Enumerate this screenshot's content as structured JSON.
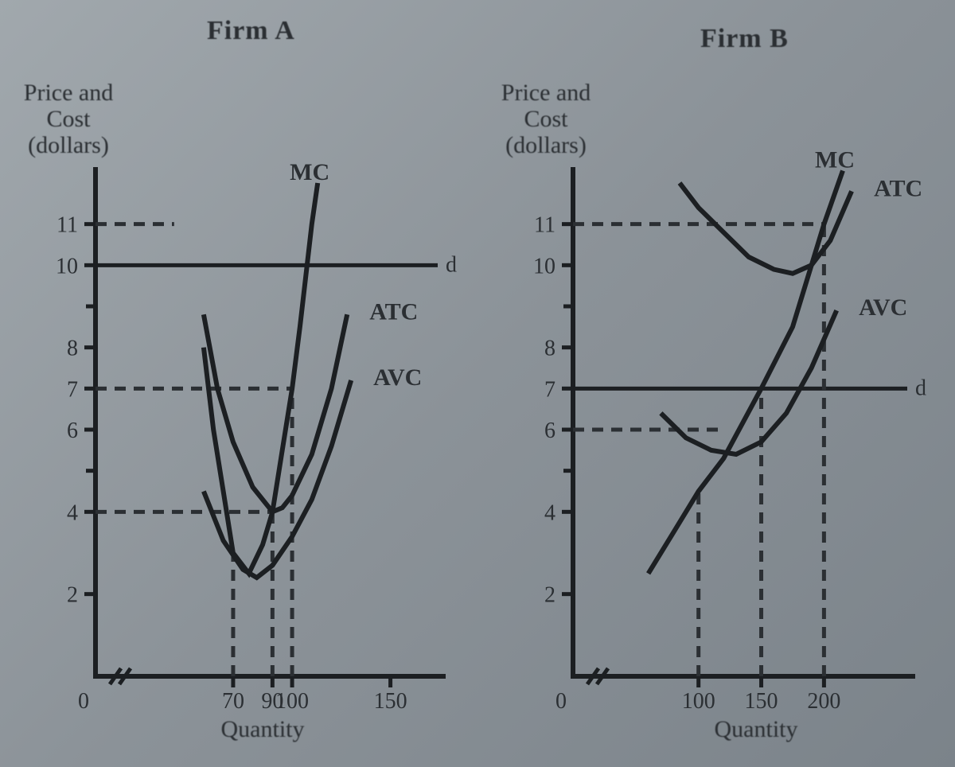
{
  "background_color": "#8f979d",
  "line_color": "#1c1f22",
  "text_color": "#2b2f33",
  "font_family": "Times New Roman, serif",
  "stroke_width": 6,
  "dash_pattern": "14 10",
  "panel_a": {
    "title": "Firm A",
    "y_axis_label_line1": "Price and",
    "y_axis_label_line2": "Cost",
    "y_axis_label_line3": "(dollars)",
    "x_axis_label": "Quantity",
    "x_origin": "0",
    "y_ticks": [
      {
        "v": 2,
        "label": "2"
      },
      {
        "v": 4,
        "label": "4"
      },
      {
        "v": 6,
        "label": "6"
      },
      {
        "v": 7,
        "label": "7"
      },
      {
        "v": 8,
        "label": "8"
      },
      {
        "v": 10,
        "label": "10"
      },
      {
        "v": 11,
        "label": "11"
      }
    ],
    "x_ticks": [
      {
        "v": 70,
        "label": "70"
      },
      {
        "v": 90,
        "label": "90"
      },
      {
        "v": 100,
        "label": "100"
      },
      {
        "v": 150,
        "label": "150"
      }
    ],
    "ylim": [
      0,
      12
    ],
    "xlim": [
      0,
      170
    ],
    "curves": {
      "mc": {
        "label": "MC",
        "points": [
          [
            55,
            8
          ],
          [
            60,
            6
          ],
          [
            65,
            4.5
          ],
          [
            70,
            3.0
          ],
          [
            78,
            2.5
          ],
          [
            85,
            3.2
          ],
          [
            90,
            4.0
          ],
          [
            95,
            5.5
          ],
          [
            100,
            7.0
          ],
          [
            104,
            8.5
          ],
          [
            110,
            11
          ],
          [
            113,
            12
          ]
        ]
      },
      "atc": {
        "label": "ATC",
        "points": [
          [
            55,
            8.8
          ],
          [
            62,
            7.0
          ],
          [
            70,
            5.7
          ],
          [
            80,
            4.6
          ],
          [
            90,
            4.0
          ],
          [
            95,
            4.1
          ],
          [
            100,
            4.4
          ],
          [
            110,
            5.4
          ],
          [
            120,
            7.0
          ],
          [
            128,
            8.8
          ]
        ]
      },
      "avc": {
        "label": "AVC",
        "points": [
          [
            55,
            4.5
          ],
          [
            65,
            3.3
          ],
          [
            75,
            2.6
          ],
          [
            82,
            2.4
          ],
          [
            90,
            2.7
          ],
          [
            100,
            3.4
          ],
          [
            110,
            4.3
          ],
          [
            120,
            5.6
          ],
          [
            130,
            7.2
          ]
        ]
      }
    },
    "demand": {
      "label": "d",
      "y": 10
    },
    "guides": [
      {
        "type": "h",
        "y": 11,
        "x_to": 40
      },
      {
        "type": "h",
        "y": 7,
        "x_to": 100
      },
      {
        "type": "h",
        "y": 4,
        "x_to": 90
      },
      {
        "type": "v",
        "x": 70,
        "y_to": 3.0
      },
      {
        "type": "v",
        "x": 90,
        "y_to": 4.0
      },
      {
        "type": "v",
        "x": 100,
        "y_to": 7.0
      }
    ]
  },
  "panel_b": {
    "title": "Firm B",
    "y_axis_label_line1": "Price and",
    "y_axis_label_line2": "Cost",
    "y_axis_label_line3": "(dollars)",
    "x_axis_label": "Quantity",
    "x_origin": "0",
    "y_ticks": [
      {
        "v": 2,
        "label": "2"
      },
      {
        "v": 4,
        "label": "4"
      },
      {
        "v": 6,
        "label": "6"
      },
      {
        "v": 7,
        "label": "7"
      },
      {
        "v": 8,
        "label": "8"
      },
      {
        "v": 10,
        "label": "10"
      },
      {
        "v": 11,
        "label": "11"
      }
    ],
    "x_ticks": [
      {
        "v": 100,
        "label": "100"
      },
      {
        "v": 150,
        "label": "150"
      },
      {
        "v": 200,
        "label": "200"
      }
    ],
    "ylim": [
      0,
      12
    ],
    "xlim": [
      0,
      260
    ],
    "curves": {
      "mc": {
        "label": "MC",
        "points": [
          [
            60,
            2.5
          ],
          [
            80,
            3.5
          ],
          [
            100,
            4.5
          ],
          [
            120,
            5.3
          ],
          [
            150,
            7.0
          ],
          [
            175,
            8.5
          ],
          [
            200,
            11.0
          ],
          [
            215,
            12.3
          ]
        ]
      },
      "atc": {
        "label": "ATC",
        "points": [
          [
            85,
            12.0
          ],
          [
            100,
            11.4
          ],
          [
            120,
            10.8
          ],
          [
            140,
            10.2
          ],
          [
            160,
            9.9
          ],
          [
            175,
            9.8
          ],
          [
            190,
            10.0
          ],
          [
            205,
            10.6
          ],
          [
            222,
            11.8
          ]
        ]
      },
      "avc": {
        "label": "AVC",
        "points": [
          [
            70,
            6.4
          ],
          [
            90,
            5.8
          ],
          [
            110,
            5.5
          ],
          [
            130,
            5.4
          ],
          [
            150,
            5.7
          ],
          [
            170,
            6.4
          ],
          [
            190,
            7.5
          ],
          [
            210,
            8.9
          ]
        ]
      }
    },
    "demand": {
      "label": "d",
      "y": 7
    },
    "guides": [
      {
        "type": "h",
        "y": 11,
        "x_to": 200
      },
      {
        "type": "h",
        "y": 6,
        "x_to": 120
      },
      {
        "type": "v",
        "x": 100,
        "y_to": 4.5
      },
      {
        "type": "v",
        "x": 150,
        "y_to": 7.0
      },
      {
        "type": "v",
        "x": 200,
        "y_to": 11.0
      }
    ]
  }
}
